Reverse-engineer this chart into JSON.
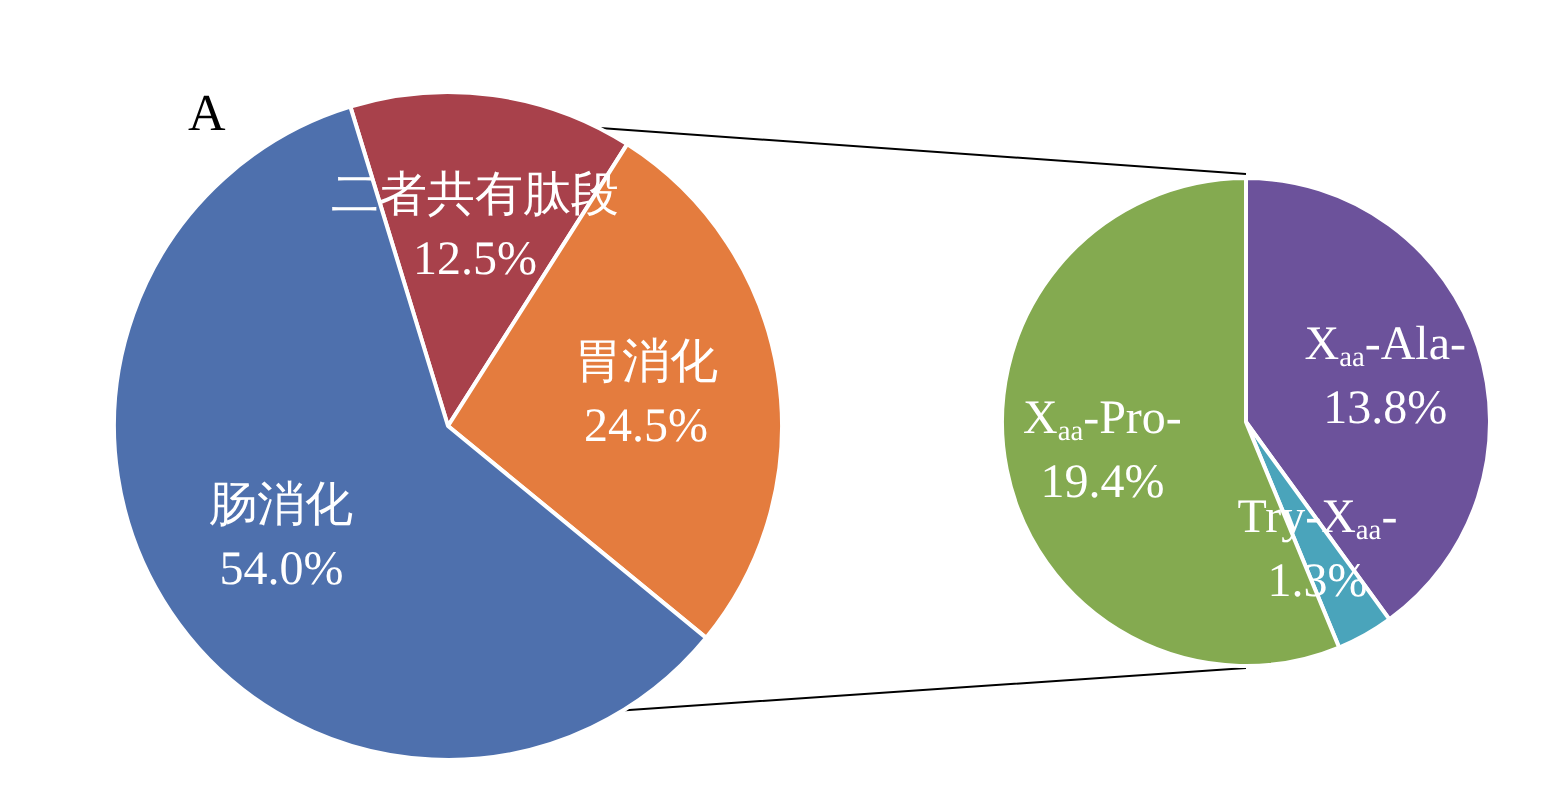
{
  "chart_data": [
    {
      "type": "pie",
      "title": "A",
      "categories": [
        "二者共有肽段",
        "胃消化",
        "肠消化"
      ],
      "values": [
        12.5,
        24.5,
        54.0
      ],
      "value_labels": [
        "12.5%",
        "24.5%",
        "54.0%"
      ],
      "colors": [
        "#a8414b",
        "#e47c3e",
        "#4e70ad"
      ]
    },
    {
      "type": "pie",
      "categories": [
        "X$_{aa}$-Ala-",
        "Try-X$_{aa}$-",
        "X$_{aa}$-Pro-"
      ],
      "values": [
        13.8,
        1.3,
        19.4
      ],
      "value_labels": [
        "13.8%",
        "1.3%",
        "19.4%"
      ],
      "colors": [
        "#6c529b",
        "#4aa4bb",
        "#84aa50"
      ]
    }
  ]
}
